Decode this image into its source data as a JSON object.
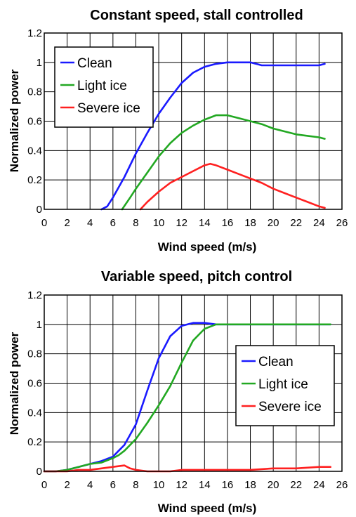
{
  "colors": {
    "clean": "#1a1aff",
    "light": "#22a822",
    "severe": "#ff2020"
  },
  "chart_data": [
    {
      "type": "line",
      "title": "Constant speed, stall controlled",
      "xlabel": "Wind speed (m/s)",
      "ylabel": "Normalized power",
      "xlim": [
        0,
        26
      ],
      "ylim": [
        0,
        1.2
      ],
      "xticks": [
        0,
        2,
        4,
        6,
        8,
        10,
        12,
        14,
        16,
        18,
        20,
        22,
        24,
        26
      ],
      "yticks": [
        0,
        0.2,
        0.4,
        0.6,
        0.8,
        1,
        1.2
      ],
      "xtick_labels": [
        "0",
        "2",
        "4",
        "6",
        "8",
        "10",
        "12",
        "14",
        "16",
        "18",
        "20",
        "22",
        "24",
        "26"
      ],
      "ytick_labels": [
        "0",
        "0.2",
        "0.4",
        "0.6",
        "0.8",
        "1",
        "1.2"
      ],
      "grid": true,
      "legend": "top-left",
      "series": [
        {
          "name": "Clean",
          "color": "clean",
          "x": [
            5,
            5.5,
            6,
            7,
            8,
            9,
            10,
            11,
            12,
            13,
            14,
            15,
            16,
            17,
            18,
            18.5,
            19,
            20,
            21,
            22,
            23,
            24,
            24.5
          ],
          "y": [
            0,
            0.02,
            0.08,
            0.22,
            0.38,
            0.52,
            0.65,
            0.76,
            0.86,
            0.93,
            0.97,
            0.99,
            1.0,
            1.0,
            1.0,
            0.99,
            0.98,
            0.98,
            0.98,
            0.98,
            0.98,
            0.98,
            0.99
          ]
        },
        {
          "name": "Light ice",
          "color": "light",
          "x": [
            6.8,
            7.5,
            8,
            9,
            10,
            11,
            12,
            13,
            14,
            15,
            16,
            17,
            18,
            19,
            20,
            21,
            22,
            23,
            24,
            24.5
          ],
          "y": [
            0,
            0.08,
            0.14,
            0.25,
            0.36,
            0.45,
            0.52,
            0.57,
            0.61,
            0.64,
            0.64,
            0.62,
            0.6,
            0.58,
            0.55,
            0.53,
            0.51,
            0.5,
            0.49,
            0.48
          ]
        },
        {
          "name": "Severe ice",
          "color": "severe",
          "x": [
            8.4,
            9,
            10,
            11,
            12,
            13,
            14,
            14.5,
            15,
            16,
            17,
            18,
            19,
            20,
            21,
            22,
            23,
            24,
            24.5
          ],
          "y": [
            0,
            0.05,
            0.12,
            0.18,
            0.22,
            0.26,
            0.3,
            0.31,
            0.3,
            0.27,
            0.24,
            0.21,
            0.18,
            0.14,
            0.11,
            0.08,
            0.05,
            0.02,
            0.01
          ]
        }
      ]
    },
    {
      "type": "line",
      "title": "Variable speed, pitch control",
      "xlabel": "Wind speed (m/s)",
      "ylabel": "Normalized power",
      "xlim": [
        0,
        26
      ],
      "ylim": [
        0,
        1.2
      ],
      "xticks": [
        0,
        2,
        4,
        6,
        8,
        10,
        12,
        14,
        16,
        18,
        20,
        22,
        24,
        26
      ],
      "yticks": [
        0,
        0.2,
        0.4,
        0.6,
        0.8,
        1,
        1.2
      ],
      "xtick_labels": [
        "0",
        "2",
        "4",
        "6",
        "8",
        "10",
        "12",
        "14",
        "16",
        "18",
        "20",
        "22",
        "24",
        "26"
      ],
      "ytick_labels": [
        "0",
        "0.2",
        "0.4",
        "0.6",
        "0.8",
        "1",
        "1.2"
      ],
      "grid": true,
      "legend": "bottom-right",
      "series": [
        {
          "name": "Clean",
          "color": "clean",
          "x": [
            0,
            1,
            2,
            3,
            4,
            5,
            6,
            6.5,
            7,
            8,
            9,
            10,
            11,
            12,
            13,
            14,
            15,
            16,
            18,
            20,
            22,
            24,
            25
          ],
          "y": [
            0,
            0,
            0.01,
            0.03,
            0.05,
            0.07,
            0.1,
            0.14,
            0.18,
            0.32,
            0.55,
            0.77,
            0.92,
            0.99,
            1.01,
            1.01,
            1.0,
            1.0,
            1.0,
            1.0,
            1.0,
            1.0,
            1.0
          ]
        },
        {
          "name": "Light ice",
          "color": "light",
          "x": [
            0,
            1,
            2,
            3,
            4,
            5,
            6,
            6.5,
            7,
            8,
            9,
            10,
            11,
            12,
            13,
            14,
            15,
            16,
            18,
            20,
            22,
            24,
            25
          ],
          "y": [
            0,
            0,
            0.01,
            0.03,
            0.05,
            0.06,
            0.09,
            0.11,
            0.14,
            0.22,
            0.33,
            0.45,
            0.58,
            0.74,
            0.89,
            0.97,
            1.0,
            1.0,
            1.0,
            1.0,
            1.0,
            1.0,
            1.0
          ]
        },
        {
          "name": "Severe ice",
          "color": "severe",
          "x": [
            0,
            1,
            2,
            3,
            4,
            5,
            6,
            7,
            7.5,
            8,
            9,
            10,
            11,
            12,
            14,
            16,
            18,
            20,
            22,
            24,
            25
          ],
          "y": [
            0,
            0,
            0,
            0.01,
            0.01,
            0.02,
            0.03,
            0.04,
            0.02,
            0.01,
            0,
            0,
            0,
            0.01,
            0.01,
            0.01,
            0.01,
            0.02,
            0.02,
            0.03,
            0.03
          ]
        }
      ]
    }
  ]
}
